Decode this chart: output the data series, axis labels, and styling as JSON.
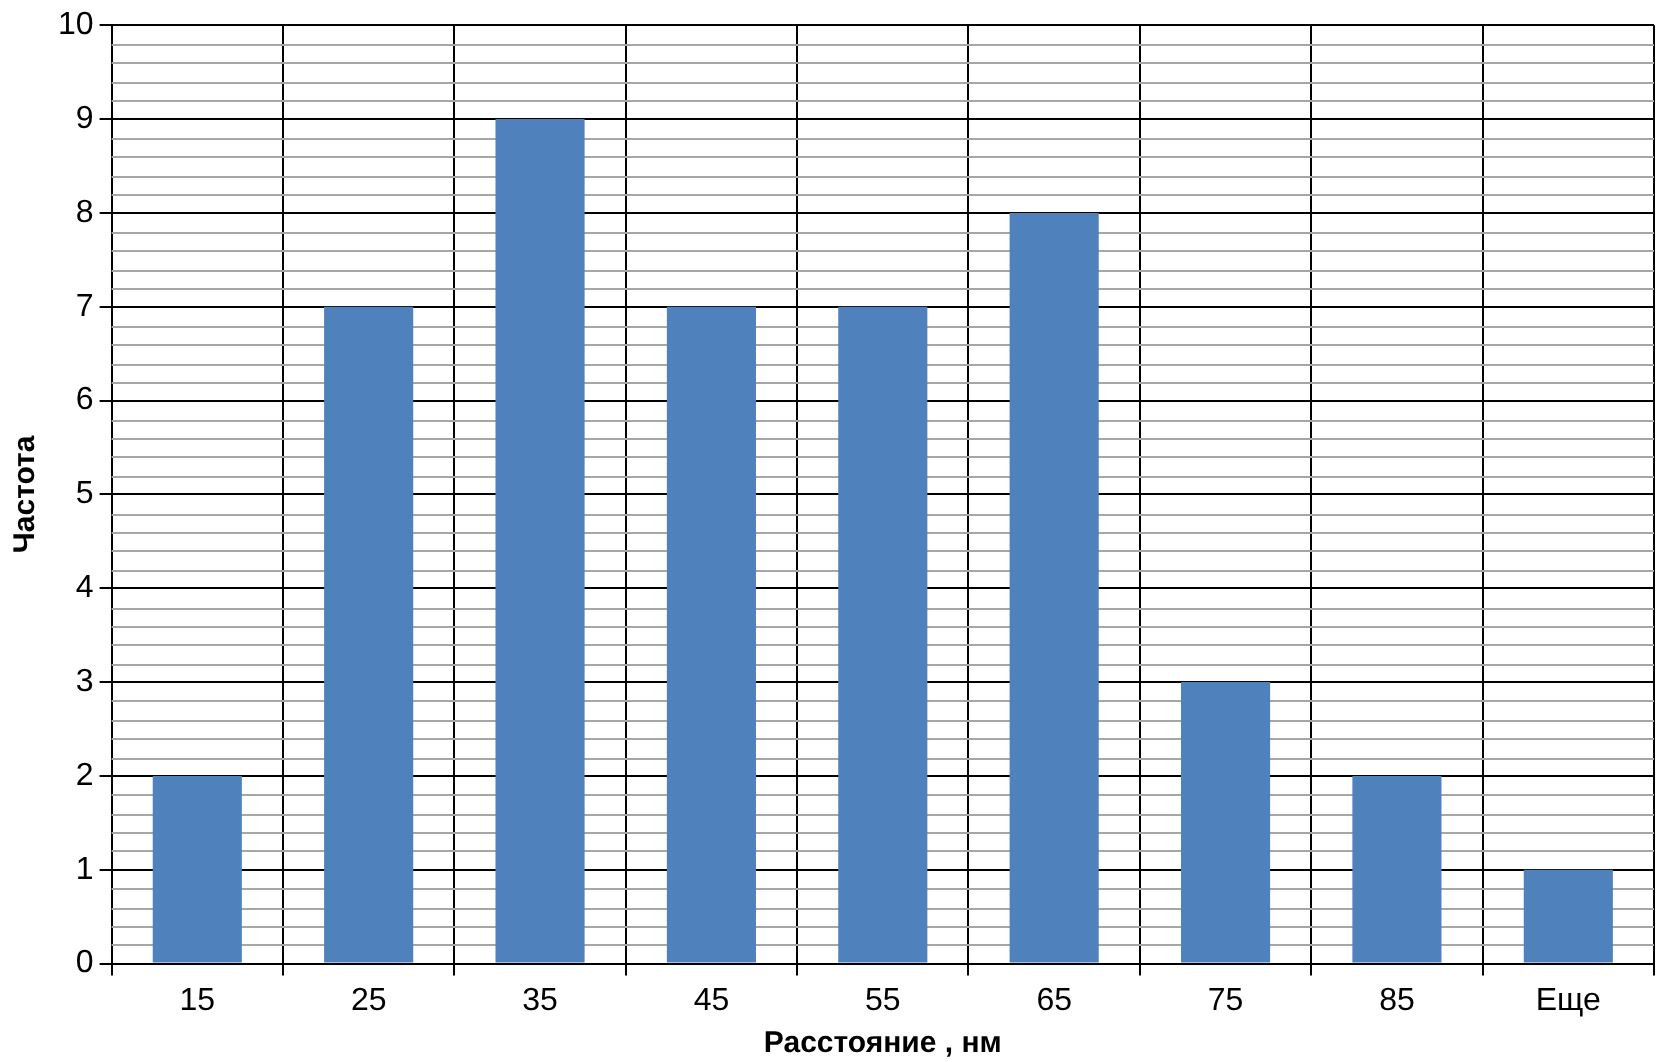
{
  "chart_data": {
    "type": "bar",
    "xlabel": "Расстояние , нм",
    "ylabel": "Частота",
    "categories": [
      "15",
      "25",
      "35",
      "45",
      "55",
      "65",
      "75",
      "85",
      "Еще"
    ],
    "values": [
      2,
      7,
      9,
      7,
      7,
      8,
      3,
      2,
      1
    ],
    "color": "#4f81bd",
    "ylim": [
      0,
      10
    ],
    "yticks": [
      0,
      1,
      2,
      3,
      4,
      5,
      6,
      7,
      8,
      9,
      10
    ],
    "grid": true,
    "legend": false
  }
}
